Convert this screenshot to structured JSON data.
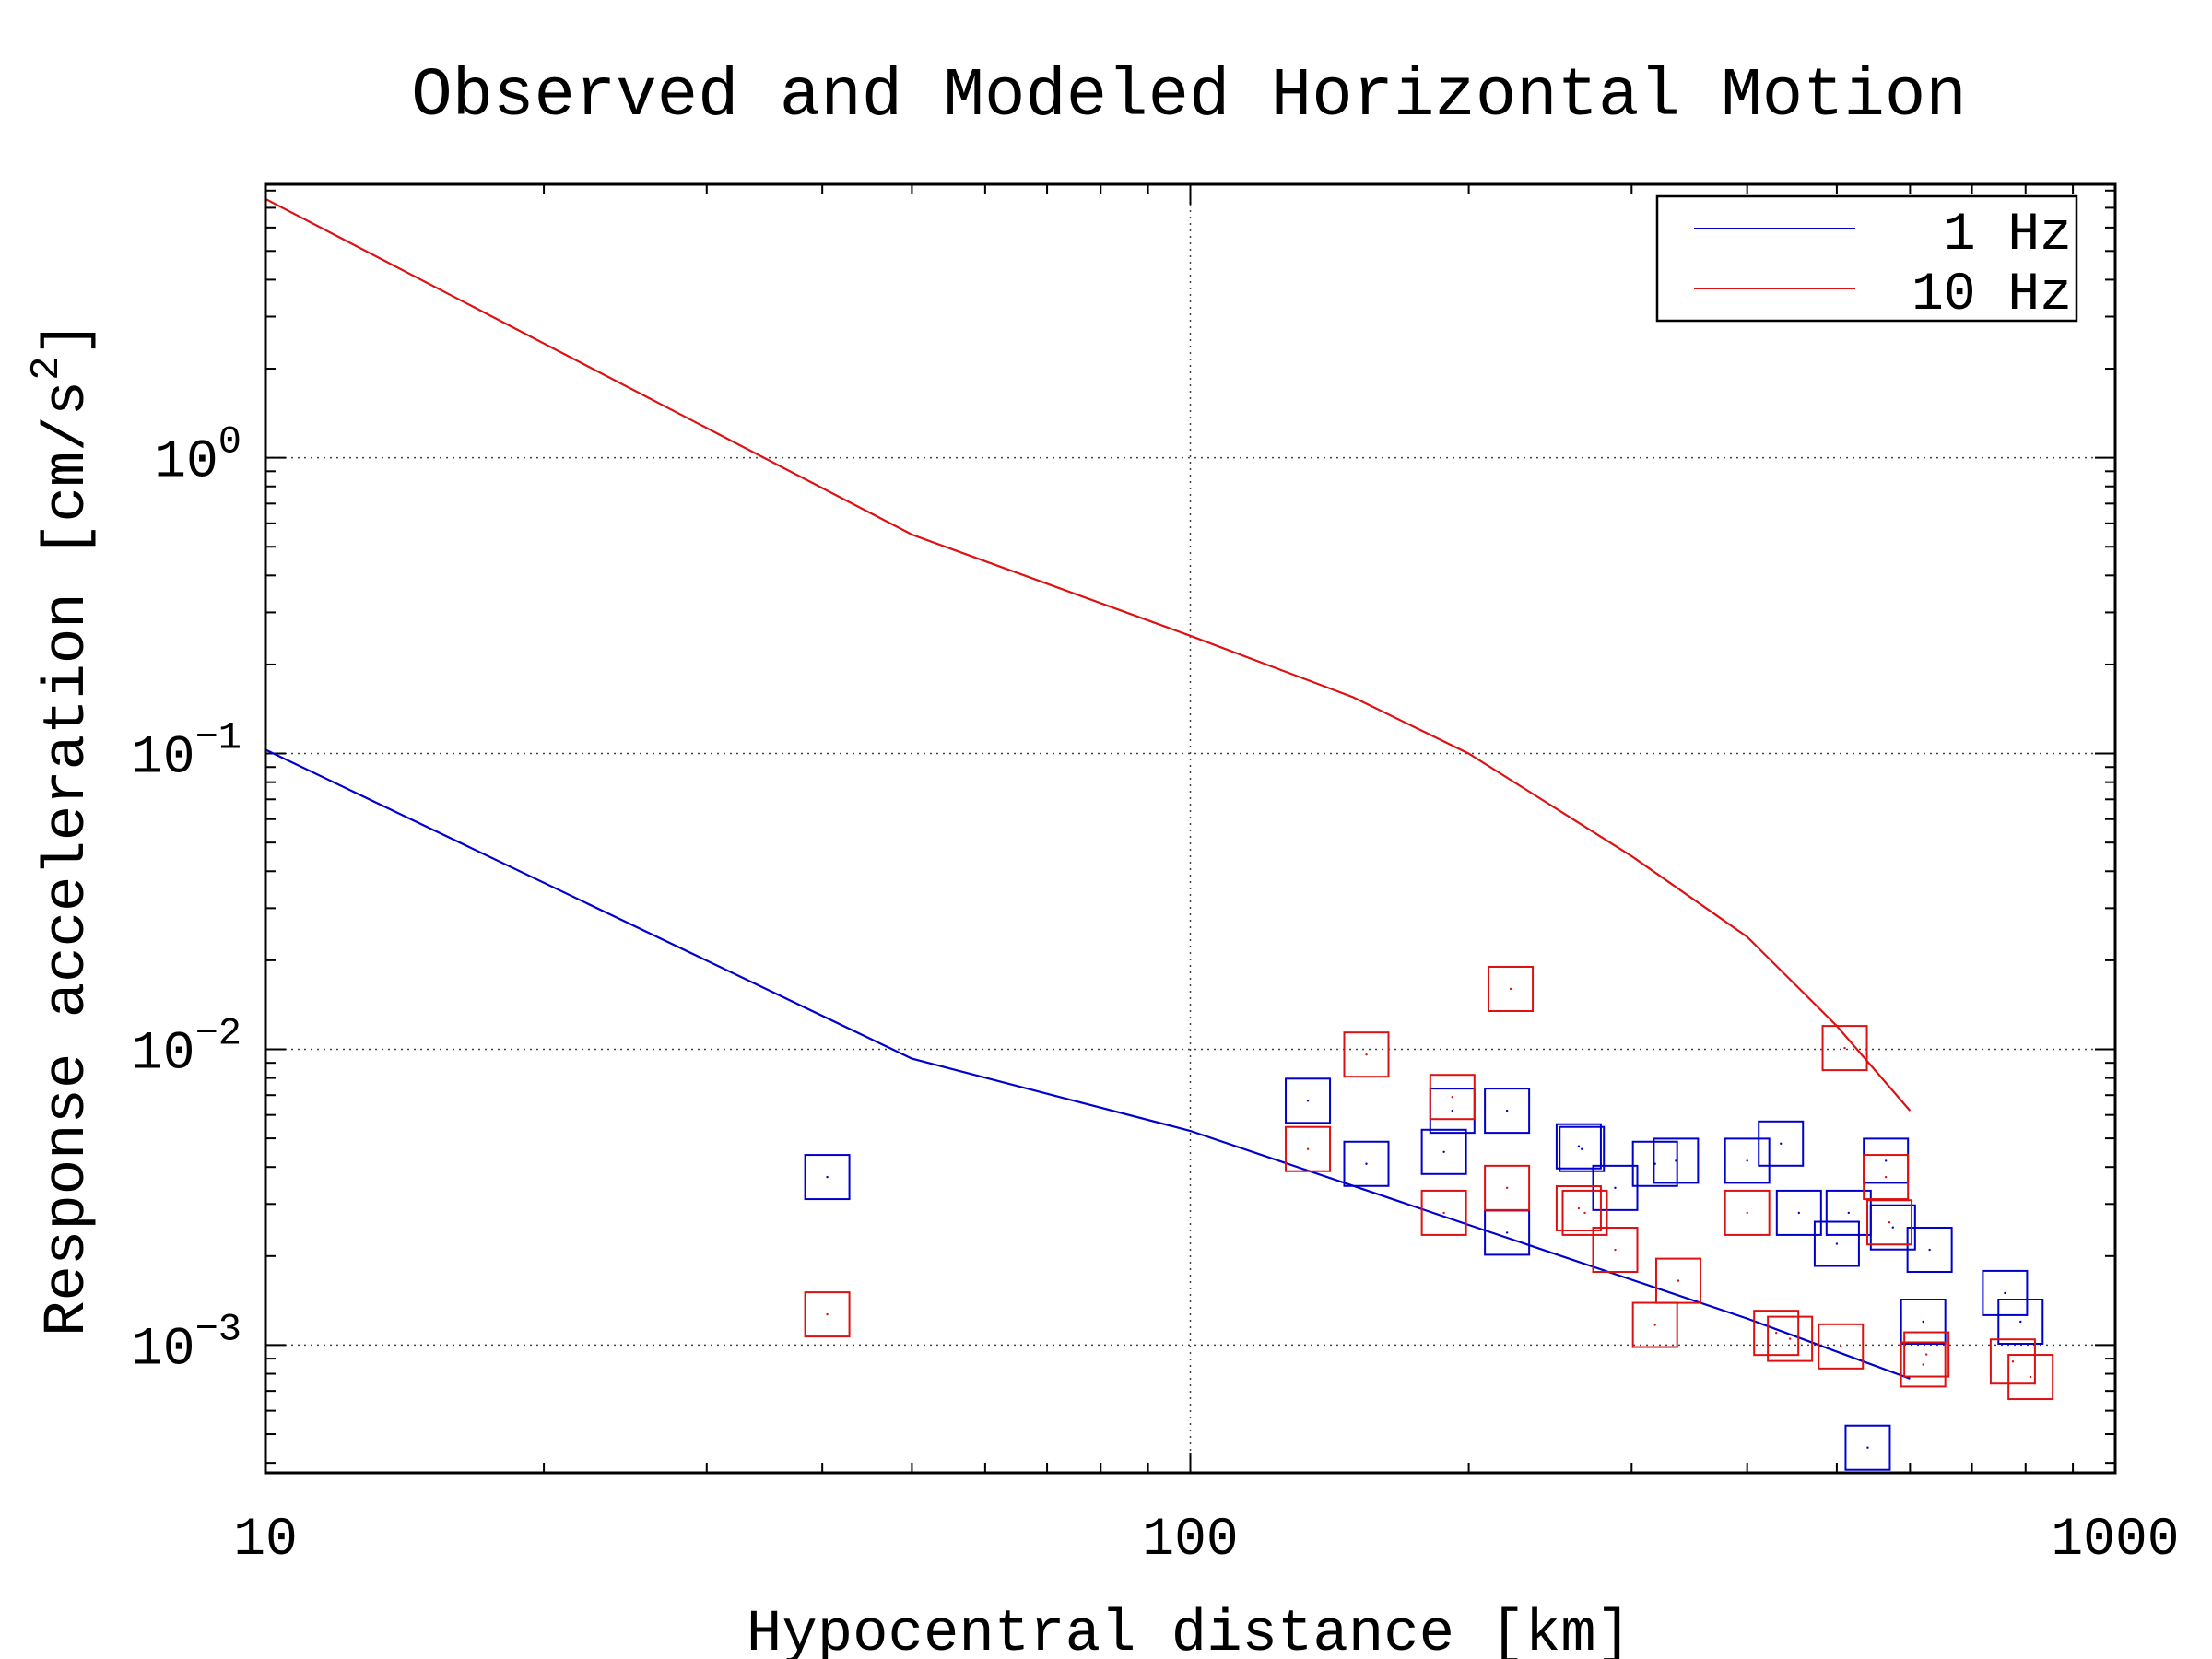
{
  "chart_data": {
    "type": "line",
    "title": "Observed and Modeled Horizontal Motion",
    "xlabel": "Hypocentral distance [km]",
    "ylabel_text": "Response acceleration [cm/s",
    "ylabel_superscript": "2",
    "ylabel_close": "]",
    "x_scale": "log",
    "y_scale": "log",
    "xlim": [
      10,
      1000
    ],
    "ylim": [
      0.00037,
      8.4
    ],
    "x_ticks": [
      {
        "value": 10,
        "label": "10"
      },
      {
        "value": 100,
        "label": "100"
      },
      {
        "value": 1000,
        "label": "1000"
      }
    ],
    "y_ticks": [
      {
        "value": 1,
        "base": "10",
        "exp": "0"
      },
      {
        "value": 0.1,
        "base": "10",
        "exp": "−1"
      },
      {
        "value": 0.01,
        "base": "10",
        "exp": "−2"
      },
      {
        "value": 0.001,
        "base": "10",
        "exp": "−3"
      }
    ],
    "grid": true,
    "legend_position": "top-right",
    "series": [
      {
        "name": "1 Hz",
        "color": "#0000cc",
        "line": [
          [
            10,
            0.103
          ],
          [
            50,
            0.0093
          ],
          [
            100,
            0.0053
          ],
          [
            200,
            0.00255
          ],
          [
            400,
            0.00123
          ],
          [
            600,
            0.00077
          ]
        ],
        "observed": [
          [
            40.5,
            0.0037
          ],
          [
            134,
            0.0067
          ],
          [
            155,
            0.0041
          ],
          [
            188,
            0.0045
          ],
          [
            192,
            0.0062
          ],
          [
            220,
            0.0062
          ],
          [
            220,
            0.0024
          ],
          [
            263,
            0.0047
          ],
          [
            265,
            0.0046
          ],
          [
            288,
            0.0034
          ],
          [
            318,
            0.0041
          ],
          [
            335,
            0.0042
          ],
          [
            400,
            0.0042
          ],
          [
            435,
            0.0048
          ],
          [
            455,
            0.0028
          ],
          [
            500,
            0.0022
          ],
          [
            515,
            0.0028
          ],
          [
            540,
            0.00045
          ],
          [
            565,
            0.0042
          ],
          [
            575,
            0.0025
          ],
          [
            620,
            0.0012
          ],
          [
            630,
            0.0021
          ],
          [
            760,
            0.0015
          ],
          [
            790,
            0.0012
          ]
        ]
      },
      {
        "name": "10 Hz",
        "color": "#dd1111",
        "line": [
          [
            10,
            7.5
          ],
          [
            50,
            0.55
          ],
          [
            100,
            0.25
          ],
          [
            150,
            0.155
          ],
          [
            200,
            0.1
          ],
          [
            300,
            0.045
          ],
          [
            400,
            0.024
          ],
          [
            500,
            0.012
          ],
          [
            600,
            0.0062
          ]
        ],
        "observed": [
          [
            40.5,
            0.00127
          ],
          [
            134,
            0.0046
          ],
          [
            155,
            0.0096
          ],
          [
            188,
            0.0028
          ],
          [
            192,
            0.0069
          ],
          [
            220,
            0.0034
          ],
          [
            222,
            0.016
          ],
          [
            263,
            0.0029
          ],
          [
            267,
            0.0028
          ],
          [
            288,
            0.0021
          ],
          [
            318,
            0.00117
          ],
          [
            337,
            0.00165
          ],
          [
            400,
            0.0028
          ],
          [
            430,
            0.0011
          ],
          [
            445,
            0.00105
          ],
          [
            505,
            0.00099
          ],
          [
            510,
            0.0101
          ],
          [
            565,
            0.0037
          ],
          [
            570,
            0.0026
          ],
          [
            620,
            0.00086
          ],
          [
            625,
            0.00093
          ],
          [
            775,
            0.00088
          ],
          [
            810,
            0.00078
          ]
        ]
      }
    ]
  }
}
